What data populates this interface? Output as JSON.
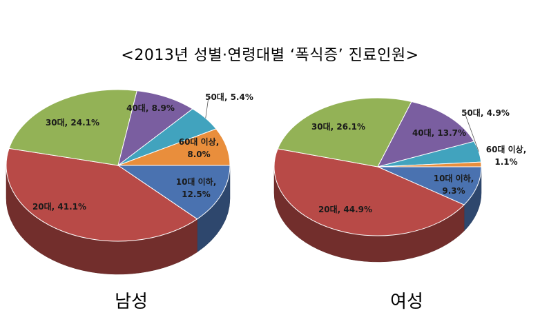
{
  "chart_data": [
    {
      "type": "pie",
      "title": "<2013년 성별·연령대별 ‘폭식증’ 진료인원>",
      "caption": "남성",
      "categories": [
        "10대 이하",
        "20대",
        "30대",
        "40대",
        "50대",
        "60대 이상"
      ],
      "values": [
        12.5,
        41.1,
        24.1,
        8.9,
        5.4,
        8.0
      ],
      "labels": [
        "10대 이하,",
        "20대, 41.1%",
        "30대, 24.1%",
        "40대, 8.9%",
        "50대, 5.4%",
        "60대 이상,"
      ],
      "sublabels": [
        "12.5%",
        "",
        "",
        "",
        "",
        "8.0%"
      ],
      "unit": "%"
    },
    {
      "type": "pie",
      "caption": "여성",
      "categories": [
        "10대 이하",
        "20대",
        "30대",
        "40대",
        "50대",
        "60대 이상"
      ],
      "values": [
        9.3,
        44.9,
        26.1,
        13.7,
        4.9,
        1.1
      ],
      "labels": [
        "10대 이하,",
        "20대, 44.9%",
        "30대, 26.1%",
        "40대, 13.7%",
        "50대, 4.9%",
        "60대 이상,"
      ],
      "sublabels": [
        "9.3%",
        "",
        "",
        "",
        "",
        "1.1%"
      ],
      "unit": "%"
    }
  ],
  "colors": {
    "10대 이하": "#4a72b0",
    "20대": "#b84a47",
    "30대": "#93b256",
    "40대": "#7a5ea0",
    "50대": "#41a3be",
    "60대 이상": "#e98e3c"
  }
}
